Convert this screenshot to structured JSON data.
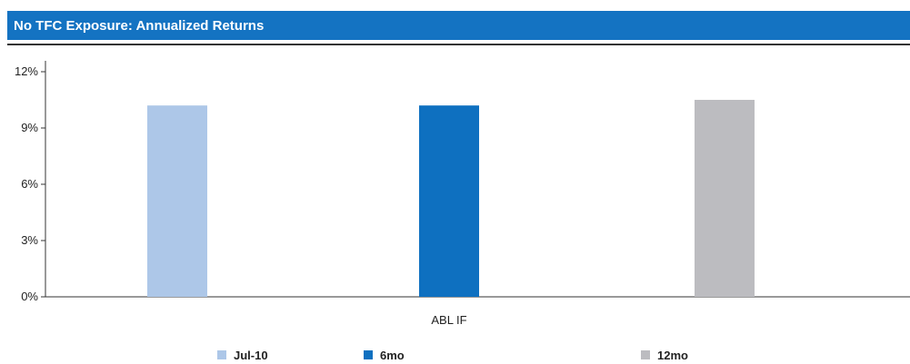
{
  "header": {
    "title": "No TFC Exposure: Annualized Returns",
    "background_color": "#1473c2"
  },
  "chart_data": {
    "type": "bar",
    "title": "No TFC Exposure: Annualized Returns",
    "xlabel": "",
    "ylabel": "",
    "categories": [
      "ABL IF"
    ],
    "series": [
      {
        "name": "Jul-10",
        "values": [
          10.2
        ],
        "color": "#adc7e8"
      },
      {
        "name": "6mo",
        "values": [
          10.2
        ],
        "color": "#0e70c0"
      },
      {
        "name": "12mo",
        "values": [
          10.5
        ],
        "color": "#bcbcc0"
      }
    ],
    "ylim": [
      0,
      12
    ],
    "yticks": [
      0,
      3,
      6,
      9,
      12
    ],
    "ytick_labels": [
      "0%",
      "3%",
      "6%",
      "9%",
      "12%"
    ],
    "grid": false,
    "legend_position": "bottom"
  }
}
